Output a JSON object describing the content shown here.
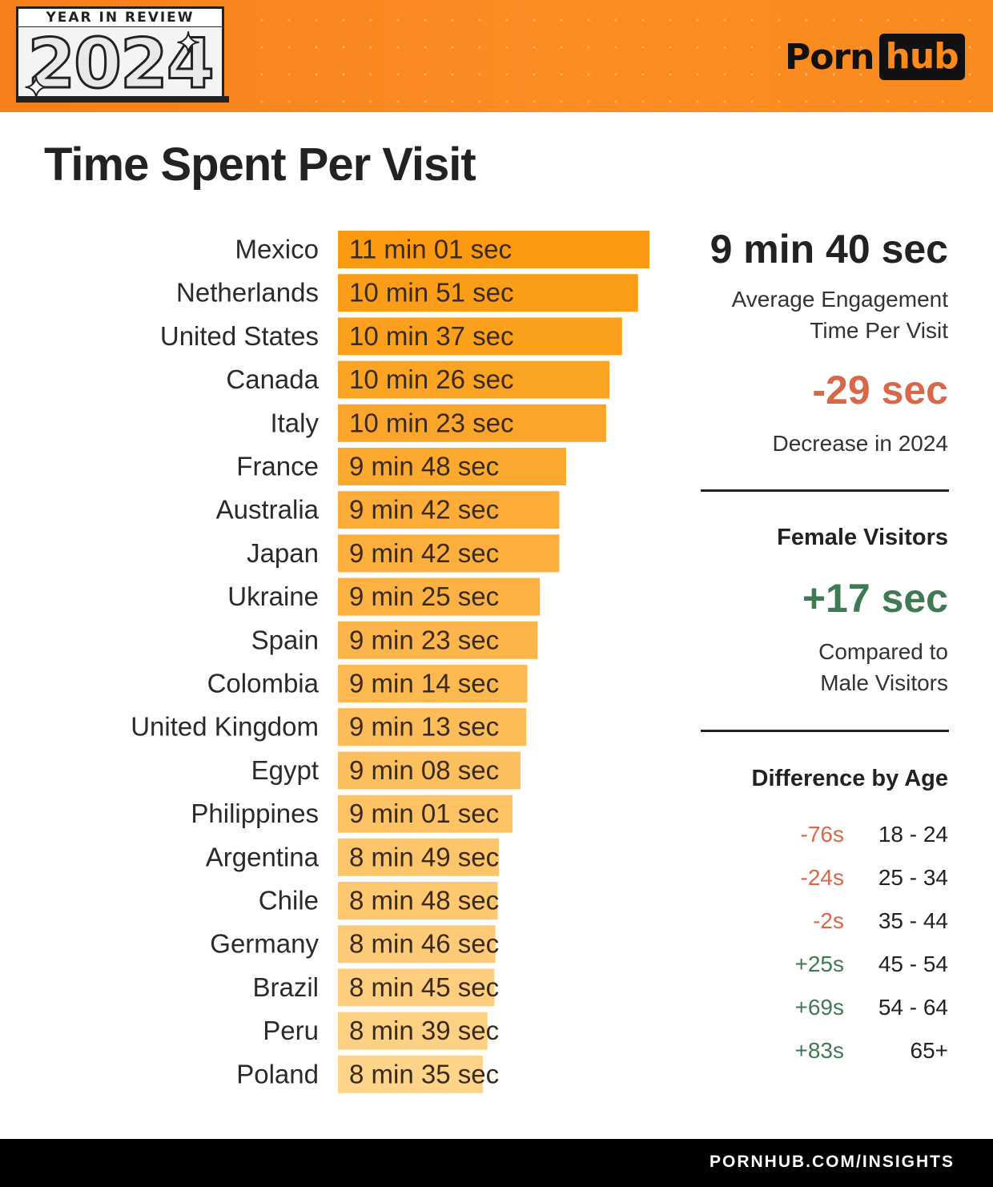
{
  "header": {
    "badge_label": "YEAR IN REVIEW",
    "badge_year": "2024",
    "logo_left": "Porn",
    "logo_right": "hub",
    "colors": {
      "orange": "#f98a1e",
      "dark": "#111111"
    }
  },
  "title": "Time Spent Per Visit",
  "chart_data": {
    "type": "bar",
    "orientation": "horizontal",
    "title": "Time Spent Per Visit",
    "categories": [
      "Mexico",
      "Netherlands",
      "United States",
      "Canada",
      "Italy",
      "France",
      "Australia",
      "Japan",
      "Ukraine",
      "Spain",
      "Colombia",
      "United Kingdom",
      "Egypt",
      "Philippines",
      "Argentina",
      "Chile",
      "Germany",
      "Brazil",
      "Peru",
      "Poland"
    ],
    "values_seconds": [
      661,
      651,
      637,
      626,
      623,
      588,
      582,
      582,
      565,
      563,
      554,
      553,
      548,
      541,
      529,
      528,
      526,
      525,
      519,
      515
    ],
    "value_labels": [
      "11 min 01 sec",
      "10 min 51 sec",
      "10 min 37 sec",
      "10 min 26 sec",
      "10 min 23 sec",
      "9 min 48 sec",
      "9 min 42 sec",
      "9 min 42 sec",
      "9 min 25 sec",
      "9 min 23 sec",
      "9 min 14 sec",
      "9 min 13 sec",
      "9 min 08 sec",
      "9 min 01 sec",
      "8 min 49 sec",
      "8 min 48 sec",
      "8 min 46 sec",
      "8 min 45 sec",
      "8 min 39 sec",
      "8 min 35 sec"
    ],
    "colors": {
      "top": "#fb9a10",
      "bottom": "#fdd48a"
    }
  },
  "sidebar": {
    "average_value": "9 min 40 sec",
    "average_label_line1": "Average Engagement",
    "average_label_line2": "Time Per Visit",
    "change_value": "-29 sec",
    "change_label": "Decrease in 2024",
    "female_heading": "Female Visitors",
    "female_value": "+17 sec",
    "female_label_line1": "Compared to",
    "female_label_line2": "Male Visitors",
    "age_heading": "Difference by Age",
    "age_rows": [
      {
        "diff": "-76s",
        "range": "18 - 24",
        "trend": "negative"
      },
      {
        "diff": "-24s",
        "range": "25 - 34",
        "trend": "negative"
      },
      {
        "diff": "-2s",
        "range": "35 - 44",
        "trend": "negative"
      },
      {
        "diff": "+25s",
        "range": "45 - 54",
        "trend": "positive"
      },
      {
        "diff": "+69s",
        "range": "54 - 64",
        "trend": "positive"
      },
      {
        "diff": "+83s",
        "range": "65+",
        "trend": "positive"
      }
    ],
    "colors": {
      "negative": "#d9674a",
      "positive": "#3f7a55"
    }
  },
  "footer": {
    "text": "PORNHUB.COM/INSIGHTS"
  }
}
